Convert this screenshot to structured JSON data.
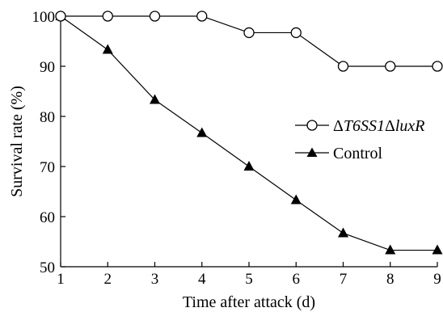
{
  "chart_data": {
    "type": "line",
    "xlabel": "Time after attack (d)",
    "ylabel": "Survival rate (%)",
    "x": [
      1,
      2,
      3,
      4,
      5,
      6,
      7,
      8,
      9
    ],
    "xlim": [
      1,
      9
    ],
    "ylim": [
      50,
      100
    ],
    "xticks": [
      "1",
      "2",
      "3",
      "4",
      "5",
      "6",
      "7",
      "8",
      "9"
    ],
    "yticks": [
      "50",
      "60",
      "70",
      "80",
      "90",
      "100"
    ],
    "grid": false,
    "legend_position": "right",
    "series": [
      {
        "name_prefix": "Δ",
        "name_gene1": "T6SS1",
        "name_mid": "Δ",
        "name_gene2": "luxR",
        "marker": "open-circle",
        "color": "#000000",
        "values": [
          100,
          100,
          100,
          100,
          96.7,
          96.7,
          90,
          90,
          90
        ]
      },
      {
        "name": "Control",
        "marker": "filled-triangle",
        "color": "#000000",
        "values": [
          100,
          93.3,
          83.3,
          76.7,
          70,
          63.3,
          56.7,
          53.3,
          53.3
        ]
      }
    ]
  }
}
